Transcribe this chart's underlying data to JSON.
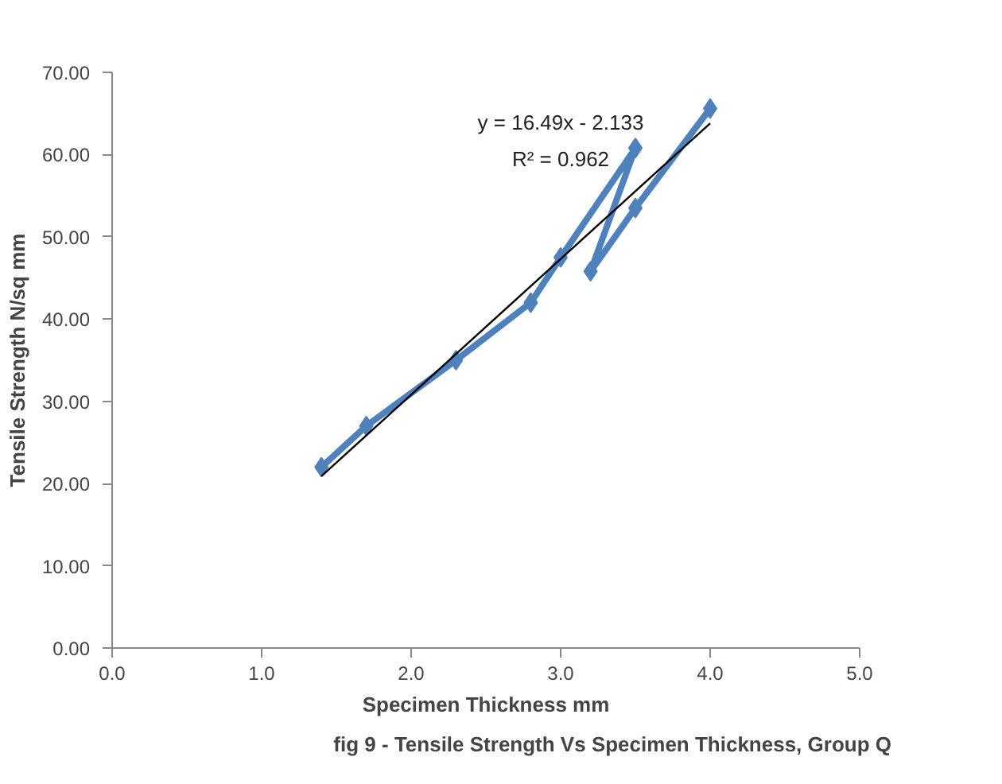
{
  "chart_data": {
    "type": "line",
    "title": "fig 9 - Tensile Strength Vs Specimen Thickness, Group Q",
    "xlabel": "Specimen Thickness mm",
    "ylabel": "Tensile Strength N/sq mm",
    "x": [
      1.4,
      1.7,
      2.3,
      2.8,
      3.0,
      3.5,
      3.2,
      3.5,
      4.0
    ],
    "series": [
      {
        "color": "#4f81bd",
        "values": [
          22.0,
          27.0,
          35.0,
          42.0,
          47.5,
          60.8,
          45.8,
          53.5,
          65.6
        ],
        "marker": "diamond"
      },
      {
        "type": "line",
        "color": "#000000",
        "x": [
          1.4,
          4.0
        ],
        "values": [
          20.9,
          63.8
        ],
        "marker": "none"
      }
    ],
    "annotations": [
      "y = 16.49x - 2.133",
      "R² = 0.962"
    ],
    "xlim": [
      0,
      5
    ],
    "xticks": [
      {
        "value": 0,
        "label": "0.0"
      },
      {
        "value": 1,
        "label": "1.0"
      },
      {
        "value": 2,
        "label": "2.0"
      },
      {
        "value": 3,
        "label": "3.0"
      },
      {
        "value": 4,
        "label": "4.0"
      },
      {
        "value": 5,
        "label": "5.0"
      }
    ],
    "ylim": [
      0,
      70
    ],
    "yticks": [
      {
        "value": 0,
        "label": "0.00"
      },
      {
        "value": 10,
        "label": "10.00"
      },
      {
        "value": 20,
        "label": "20.00"
      },
      {
        "value": 30,
        "label": "30.00"
      },
      {
        "value": 40,
        "label": "40.00"
      },
      {
        "value": 50,
        "label": "50.00"
      },
      {
        "value": 60,
        "label": "60.00"
      },
      {
        "value": 70,
        "label": "70.00"
      }
    ],
    "grid": false
  }
}
